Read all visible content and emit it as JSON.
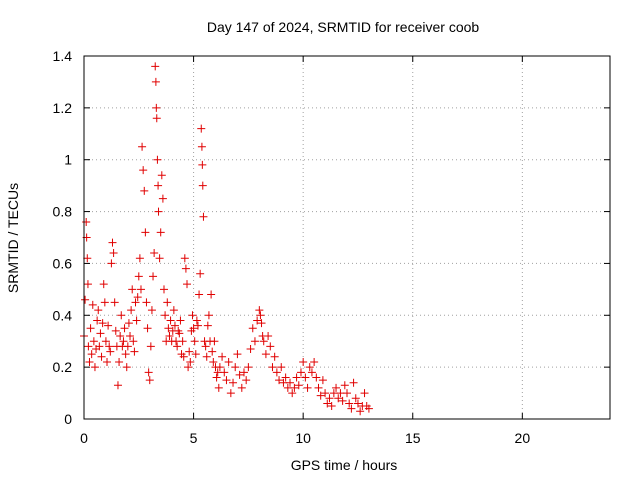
{
  "chart_data": {
    "type": "scatter",
    "title": "Day 147 of 2024, SRMTID for receiver coob",
    "xlabel": "GPS time / hours",
    "ylabel": "SRMTID / TECUs",
    "xlim": [
      0,
      24
    ],
    "ylim": [
      0,
      1.4
    ],
    "xticks": [
      0,
      5,
      10,
      15,
      20
    ],
    "xtick_labels": [
      "0",
      "5",
      "10",
      "15",
      "20"
    ],
    "yticks": [
      0,
      0.2,
      0.4,
      0.6,
      0.8,
      1.0,
      1.2,
      1.4
    ],
    "ytick_labels": [
      "0",
      "0.2",
      "0.4",
      "0.6",
      "0.8",
      "1",
      "1.2",
      "1.4"
    ],
    "grid": true,
    "marker": "+",
    "series": [
      {
        "name": "SRMTID",
        "color": "#e00000",
        "points": [
          [
            0.0,
            0.32
          ],
          [
            0.05,
            0.46
          ],
          [
            0.1,
            0.76
          ],
          [
            0.12,
            0.7
          ],
          [
            0.15,
            0.62
          ],
          [
            0.18,
            0.52
          ],
          [
            0.2,
            0.28
          ],
          [
            0.25,
            0.22
          ],
          [
            0.3,
            0.35
          ],
          [
            0.35,
            0.25
          ],
          [
            0.4,
            0.44
          ],
          [
            0.45,
            0.3
          ],
          [
            0.5,
            0.2
          ],
          [
            0.55,
            0.27
          ],
          [
            0.6,
            0.38
          ],
          [
            0.65,
            0.42
          ],
          [
            0.7,
            0.28
          ],
          [
            0.75,
            0.33
          ],
          [
            0.8,
            0.24
          ],
          [
            0.85,
            0.37
          ],
          [
            0.9,
            0.52
          ],
          [
            0.95,
            0.45
          ],
          [
            1.0,
            0.3
          ],
          [
            1.05,
            0.22
          ],
          [
            1.1,
            0.36
          ],
          [
            1.15,
            0.28
          ],
          [
            1.2,
            0.26
          ],
          [
            1.25,
            0.6
          ],
          [
            1.3,
            0.68
          ],
          [
            1.35,
            0.64
          ],
          [
            1.4,
            0.45
          ],
          [
            1.45,
            0.34
          ],
          [
            1.5,
            0.28
          ],
          [
            1.55,
            0.13
          ],
          [
            1.6,
            0.22
          ],
          [
            1.65,
            0.32
          ],
          [
            1.7,
            0.4
          ],
          [
            1.75,
            0.28
          ],
          [
            1.8,
            0.3
          ],
          [
            1.85,
            0.35
          ],
          [
            1.9,
            0.25
          ],
          [
            1.95,
            0.2
          ],
          [
            2.0,
            0.28
          ],
          [
            2.05,
            0.37
          ],
          [
            2.1,
            0.32
          ],
          [
            2.15,
            0.42
          ],
          [
            2.2,
            0.5
          ],
          [
            2.25,
            0.3
          ],
          [
            2.3,
            0.26
          ],
          [
            2.35,
            0.45
          ],
          [
            2.4,
            0.38
          ],
          [
            2.45,
            0.47
          ],
          [
            2.5,
            0.55
          ],
          [
            2.55,
            0.62
          ],
          [
            2.6,
            0.5
          ],
          [
            2.65,
            1.05
          ],
          [
            2.7,
            0.96
          ],
          [
            2.75,
            0.88
          ],
          [
            2.8,
            0.72
          ],
          [
            2.85,
            0.45
          ],
          [
            2.9,
            0.35
          ],
          [
            2.95,
            0.18
          ],
          [
            3.0,
            0.15
          ],
          [
            3.05,
            0.28
          ],
          [
            3.1,
            0.42
          ],
          [
            3.15,
            0.55
          ],
          [
            3.2,
            0.64
          ],
          [
            3.25,
            1.36
          ],
          [
            3.28,
            1.3
          ],
          [
            3.3,
            1.2
          ],
          [
            3.32,
            1.16
          ],
          [
            3.35,
            1.0
          ],
          [
            3.38,
            0.9
          ],
          [
            3.4,
            0.8
          ],
          [
            3.45,
            0.62
          ],
          [
            3.5,
            0.72
          ],
          [
            3.55,
            0.94
          ],
          [
            3.6,
            0.85
          ],
          [
            3.65,
            0.5
          ],
          [
            3.7,
            0.4
          ],
          [
            3.75,
            0.3
          ],
          [
            3.8,
            0.45
          ],
          [
            3.85,
            0.35
          ],
          [
            3.9,
            0.32
          ],
          [
            3.95,
            0.38
          ],
          [
            4.0,
            0.3
          ],
          [
            4.05,
            0.34
          ],
          [
            4.1,
            0.42
          ],
          [
            4.15,
            0.36
          ],
          [
            4.2,
            0.3
          ],
          [
            4.25,
            0.28
          ],
          [
            4.3,
            0.34
          ],
          [
            4.35,
            0.33
          ],
          [
            4.4,
            0.38
          ],
          [
            4.45,
            0.25
          ],
          [
            4.5,
            0.3
          ],
          [
            4.55,
            0.24
          ],
          [
            4.6,
            0.62
          ],
          [
            4.65,
            0.58
          ],
          [
            4.7,
            0.52
          ],
          [
            4.75,
            0.2
          ],
          [
            4.8,
            0.26
          ],
          [
            4.85,
            0.22
          ],
          [
            4.9,
            0.34
          ],
          [
            4.95,
            0.4
          ],
          [
            5.0,
            0.35
          ],
          [
            5.05,
            0.3
          ],
          [
            5.1,
            0.25
          ],
          [
            5.15,
            0.38
          ],
          [
            5.2,
            0.36
          ],
          [
            5.25,
            0.48
          ],
          [
            5.3,
            0.56
          ],
          [
            5.35,
            1.12
          ],
          [
            5.38,
            1.05
          ],
          [
            5.4,
            0.98
          ],
          [
            5.42,
            0.9
          ],
          [
            5.45,
            0.78
          ],
          [
            5.5,
            0.3
          ],
          [
            5.55,
            0.28
          ],
          [
            5.6,
            0.24
          ],
          [
            5.65,
            0.36
          ],
          [
            5.7,
            0.4
          ],
          [
            5.75,
            0.3
          ],
          [
            5.8,
            0.48
          ],
          [
            5.85,
            0.26
          ],
          [
            5.9,
            0.22
          ],
          [
            5.95,
            0.3
          ],
          [
            6.0,
            0.2
          ],
          [
            6.05,
            0.16
          ],
          [
            6.1,
            0.18
          ],
          [
            6.15,
            0.12
          ],
          [
            6.2,
            0.2
          ],
          [
            6.3,
            0.24
          ],
          [
            6.4,
            0.18
          ],
          [
            6.5,
            0.15
          ],
          [
            6.6,
            0.22
          ],
          [
            6.7,
            0.1
          ],
          [
            6.8,
            0.14
          ],
          [
            6.9,
            0.2
          ],
          [
            7.0,
            0.25
          ],
          [
            7.1,
            0.17
          ],
          [
            7.2,
            0.12
          ],
          [
            7.3,
            0.18
          ],
          [
            7.4,
            0.15
          ],
          [
            7.5,
            0.2
          ],
          [
            7.6,
            0.27
          ],
          [
            7.7,
            0.35
          ],
          [
            7.8,
            0.3
          ],
          [
            7.9,
            0.38
          ],
          [
            8.0,
            0.42
          ],
          [
            8.05,
            0.4
          ],
          [
            8.1,
            0.37
          ],
          [
            8.15,
            0.32
          ],
          [
            8.2,
            0.3
          ],
          [
            8.3,
            0.25
          ],
          [
            8.4,
            0.32
          ],
          [
            8.5,
            0.28
          ],
          [
            8.6,
            0.2
          ],
          [
            8.7,
            0.24
          ],
          [
            8.8,
            0.18
          ],
          [
            8.9,
            0.15
          ],
          [
            9.0,
            0.2
          ],
          [
            9.1,
            0.14
          ],
          [
            9.2,
            0.16
          ],
          [
            9.3,
            0.12
          ],
          [
            9.4,
            0.14
          ],
          [
            9.5,
            0.1
          ],
          [
            9.6,
            0.12
          ],
          [
            9.7,
            0.16
          ],
          [
            9.8,
            0.13
          ],
          [
            9.9,
            0.18
          ],
          [
            10.0,
            0.22
          ],
          [
            10.1,
            0.16
          ],
          [
            10.2,
            0.12
          ],
          [
            10.3,
            0.2
          ],
          [
            10.4,
            0.18
          ],
          [
            10.5,
            0.22
          ],
          [
            10.6,
            0.16
          ],
          [
            10.7,
            0.12
          ],
          [
            10.8,
            0.09
          ],
          [
            10.9,
            0.15
          ],
          [
            11.0,
            0.1
          ],
          [
            11.1,
            0.06
          ],
          [
            11.2,
            0.08
          ],
          [
            11.3,
            0.05
          ],
          [
            11.4,
            0.1
          ],
          [
            11.5,
            0.12
          ],
          [
            11.6,
            0.08
          ],
          [
            11.7,
            0.1
          ],
          [
            11.8,
            0.07
          ],
          [
            11.9,
            0.13
          ],
          [
            12.0,
            0.1
          ],
          [
            12.1,
            0.06
          ],
          [
            12.2,
            0.04
          ],
          [
            12.3,
            0.14
          ],
          [
            12.4,
            0.08
          ],
          [
            12.5,
            0.06
          ],
          [
            12.6,
            0.03
          ],
          [
            12.7,
            0.05
          ],
          [
            12.8,
            0.1
          ],
          [
            12.9,
            0.05
          ],
          [
            13.0,
            0.04
          ]
        ]
      }
    ]
  }
}
